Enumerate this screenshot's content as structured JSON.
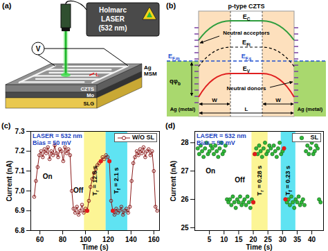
{
  "panels": {
    "a": "(a)",
    "b": "(b)"
  },
  "schematic": {
    "laser": [
      "Holmarc",
      "LASER",
      "(532 nm)"
    ],
    "meter": "V",
    "electrode": [
      "Ag",
      "MSM"
    ],
    "gap": "L",
    "layers": [
      "CZTS",
      "Mo",
      "SLG"
    ]
  },
  "band_diagram": {
    "title": "p-type CZTS",
    "E_C": {
      "base": "E",
      "sub": "C"
    },
    "E_Fi": {
      "base": "E",
      "sub": "Fi"
    },
    "E_F_s": {
      "base": "E",
      "sub": "F,s"
    },
    "E_F_m": {
      "base": "E",
      "sub": "F,m"
    },
    "E_V": {
      "base": "E",
      "sub": "V"
    },
    "barrier": {
      "base": "qφ",
      "sub": "b"
    },
    "acceptors": "Neutral acceptors",
    "donors": "Neutral donors",
    "metals": [
      "Ag (metal)",
      "Ag (metal)"
    ],
    "widths": [
      "W",
      "W"
    ],
    "length": "L"
  },
  "chart_data": [
    {
      "type": "line",
      "panel_label": "(c)",
      "x_label": "Time (s)",
      "y_label": "Current (nA)",
      "notes": [
        "LASER = 532 nm",
        "Bias = 50 mV"
      ],
      "legend": "top-right",
      "x": [
        55,
        56.5,
        58,
        59.5,
        61,
        62.5,
        64,
        65.5,
        67,
        68.5,
        70,
        71.5,
        73,
        74.5,
        76,
        77.5,
        79,
        80.5,
        82,
        83.5,
        85,
        86.5,
        88,
        89.5,
        91,
        92.5,
        94,
        95.5,
        97,
        98.5,
        100,
        101.5,
        103,
        104.5,
        106,
        107.5,
        109,
        110.5,
        112,
        113.5,
        115,
        116.5,
        118,
        119.5,
        121,
        122.5,
        124,
        125.5,
        127,
        128.5,
        130,
        131.5,
        133,
        134.5,
        136,
        137.5,
        139,
        140.5,
        142,
        143.5,
        145,
        146.5,
        148,
        149.5,
        151,
        152.5,
        154,
        155.5,
        157,
        158.5,
        160,
        161.5,
        163
      ],
      "series": [
        {
          "name": "W/O SL",
          "color": "#8b1a1a",
          "marker": "open_circle",
          "line_style": "solid",
          "values": [
            6.97,
            7.05,
            7.12,
            7.18,
            7.2,
            7.17,
            7.21,
            7.19,
            7.22,
            7.16,
            7.2,
            7.18,
            7.23,
            7.19,
            7.17,
            7.21,
            7.2,
            7.15,
            7.22,
            7.19,
            7.21,
            7.18,
            7.0,
            6.91,
            6.89,
            6.92,
            6.88,
            6.9,
            6.93,
            6.89,
            6.91,
            6.9,
            6.95,
            7.02,
            7.06,
            7.09,
            7.11,
            7.13,
            7.14,
            7.15,
            7.17,
            7.16,
            7.18,
            7.17,
            7.15,
            6.95,
            6.9,
            6.88,
            6.91,
            6.89,
            6.9,
            6.92,
            6.88,
            6.9,
            6.91,
            6.89,
            6.92,
            7.05,
            7.14,
            7.17,
            7.2,
            7.18,
            7.21,
            7.19,
            7.22,
            7.17,
            7.2,
            7.21,
            7.18,
            7.2,
            7.1,
            6.92,
            6.9
          ]
        }
      ],
      "xlim": [
        52,
        165
      ],
      "xticks": [
        60,
        80,
        100,
        120,
        140,
        160
      ],
      "ylim": [
        6.8,
        7.3
      ],
      "yticks": [
        6.8,
        6.9,
        {
          "value": 7,
          "label": "7.0"
        },
        7.1,
        7.2,
        7.3
      ],
      "regions": [
        {
          "start": 99,
          "end": 118,
          "color": "#fbf27a",
          "label": {
            "base": "T",
            "sub": "r",
            "rest": " = 12.5 s"
          }
        },
        {
          "start": 118,
          "end": 137,
          "color": "#37dcef",
          "label": {
            "base": "T",
            "sub": "f",
            "rest": " = 2.1 s"
          }
        }
      ],
      "labels": [
        {
          "text": "On",
          "x": 67,
          "y": 7.06
        },
        {
          "text": "Off",
          "x": 94,
          "y": 6.99
        }
      ],
      "highlight_points": {
        "color": "#e31a1c",
        "x": [
          101.5,
          113.5,
          121,
          124
        ],
        "y": [
          6.9,
          7.15,
          7.15,
          6.9
        ]
      }
    },
    {
      "type": "scatter",
      "panel_label": "(d)",
      "x_label": "Time (s)",
      "y_label": "Current (nA)",
      "notes": [
        "LASER = 532 nm",
        "Bias = 50 mV"
      ],
      "legend": "top-right",
      "x": [
        1,
        1.5,
        2,
        2.5,
        3,
        3.5,
        4,
        4.5,
        5,
        5.5,
        6,
        6.5,
        7,
        7.5,
        8,
        8.5,
        9,
        9.5,
        10,
        10.5,
        11,
        11.5,
        12,
        12.5,
        13,
        13.5,
        14,
        14.5,
        15,
        15.5,
        16,
        16.5,
        17,
        17.5,
        18,
        18.5,
        19,
        19.5,
        20,
        20.5,
        21,
        21.5,
        22,
        22.5,
        23,
        23.5,
        24,
        24.5,
        25,
        25.5,
        26,
        26.5,
        27,
        27.5,
        28,
        28.5,
        29,
        29.5,
        30,
        30.5,
        31,
        31.5,
        32,
        32.5,
        33,
        33.5,
        34,
        34.5,
        35,
        35.5,
        36,
        36.5,
        37,
        37.5,
        38,
        38.5,
        39,
        39.5,
        40,
        40.5,
        41,
        41.5,
        42,
        42.5,
        43
      ],
      "series": [
        {
          "name": "SL",
          "color": "#2fb83a",
          "marker": "circle",
          "values": [
            27.8,
            27.6,
            27.9,
            27.7,
            27.5,
            27.8,
            28.0,
            27.6,
            27.7,
            27.9,
            27.8,
            27.6,
            27.9,
            27.7,
            27.5,
            27.8,
            28.0,
            27.6,
            27.7,
            27.9,
            26.0,
            25.9,
            26.0,
            25.8,
            26.1,
            25.9,
            25.7,
            26.0,
            25.9,
            26.1,
            25.8,
            25.9,
            26.0,
            25.8,
            26.1,
            25.9,
            25.7,
            26.0,
            25.9,
            27.6,
            27.8,
            27.6,
            27.9,
            27.7,
            27.5,
            27.8,
            28.0,
            27.6,
            27.7,
            27.9,
            27.8,
            27.6,
            27.9,
            27.7,
            27.5,
            27.8,
            28.0,
            27.6,
            27.7,
            27.8,
            26.0,
            25.9,
            26.0,
            25.8,
            26.1,
            25.9,
            25.7,
            26.0,
            25.9,
            26.1,
            25.8,
            25.9,
            26.0,
            25.8,
            27.7,
            27.9,
            27.6,
            27.8,
            28.0,
            27.6,
            27.7,
            27.9,
            27.8,
            26.0,
            25.9
          ]
        }
      ],
      "xlim": [
        0,
        44
      ],
      "xticks": [
        5,
        10,
        15,
        20,
        25,
        30,
        35,
        40
      ],
      "ylim": [
        24.9,
        28.4
      ],
      "yticks": [
        25,
        26,
        27,
        28
      ],
      "regions": [
        {
          "start": 19.5,
          "end": 25,
          "color": "#fbf27a",
          "label": {
            "base": "T",
            "sub": "r",
            "rest": " = 0.28 s"
          }
        },
        {
          "start": 29.5,
          "end": 34.5,
          "color": "#37dcef",
          "label": {
            "base": "T",
            "sub": "f",
            "rest": " = 0.23 s"
          }
        }
      ],
      "labels": [
        {
          "text": "On",
          "x": 5.5,
          "y": 26.9
        },
        {
          "text": "Off",
          "x": 15.5,
          "y": 26.6
        }
      ],
      "highlight_points": {
        "color": "#e31a1c",
        "x": [
          20,
          20.5,
          30.5,
          31
        ],
        "y": [
          25.9,
          27.6,
          27.8,
          26.0
        ]
      }
    }
  ]
}
